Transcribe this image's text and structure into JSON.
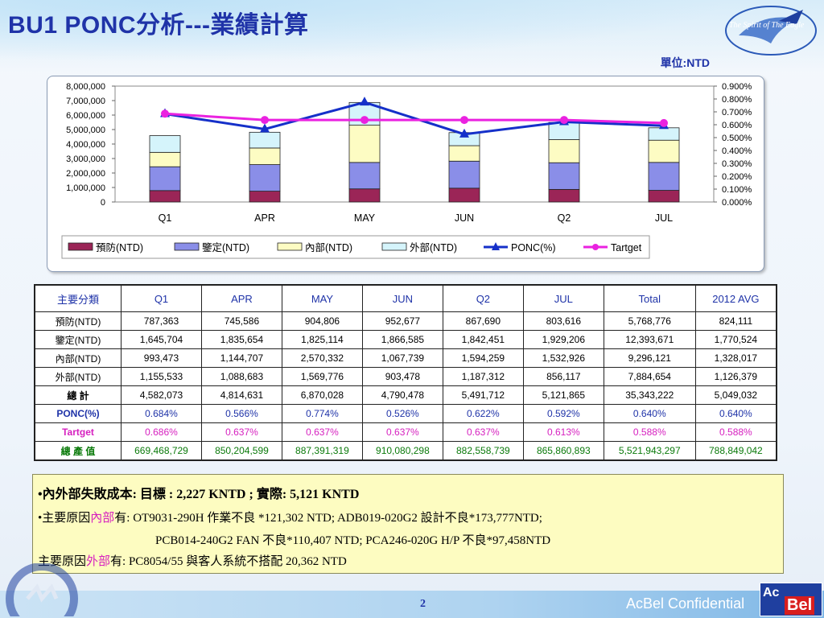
{
  "title": "BU1  PONC分析---業績計算",
  "logo_text": "The Spirit of The Eagle",
  "unit": "單位:NTD",
  "chart_data": {
    "type": "bar",
    "stacked": true,
    "categories": [
      "Q1",
      "APR",
      "MAY",
      "JUN",
      "Q2",
      "JUL"
    ],
    "y_ticks": [
      "8,000,000",
      "7,000,000",
      "6,000,000",
      "5,000,000",
      "4,000,000",
      "3,000,000",
      "2,000,000",
      "1,000,000",
      "0"
    ],
    "y2_ticks": [
      "0.900%",
      "0.800%",
      "0.700%",
      "0.600%",
      "0.500%",
      "0.400%",
      "0.300%",
      "0.200%",
      "0.100%",
      "0.000%"
    ],
    "ylim": [
      0,
      8000000
    ],
    "y2lim": [
      0,
      0.9
    ],
    "series": [
      {
        "name": "預防(NTD)",
        "color": "#9b2557",
        "values": [
          787363,
          745586,
          904806,
          952677,
          867690,
          803616
        ]
      },
      {
        "name": "鑒定(NTD)",
        "color": "#8a8ee8",
        "values": [
          1645704,
          1835654,
          1825114,
          1866585,
          1842451,
          1929206
        ]
      },
      {
        "name": "內部(NTD)",
        "color": "#fdfcc3",
        "values": [
          993473,
          1144707,
          2570332,
          1067739,
          1594259,
          1532926
        ]
      },
      {
        "name": "外部(NTD)",
        "color": "#d5f4fb",
        "values": [
          1155533,
          1088683,
          1569776,
          903478,
          1187312,
          856117
        ]
      }
    ],
    "lines": [
      {
        "name": "PONC(%)",
        "color": "#1530c9",
        "axis": "y2",
        "values": [
          0.684,
          0.566,
          0.774,
          0.526,
          0.622,
          0.592
        ]
      },
      {
        "name": "Tartget",
        "color": "#ea22e0",
        "axis": "y2",
        "values": [
          0.686,
          0.637,
          0.637,
          0.637,
          0.637,
          0.613
        ]
      }
    ],
    "legend_position": "bottom"
  },
  "table": {
    "header": [
      "主要分類",
      "Q1",
      "APR",
      "MAY",
      "JUN",
      "Q2",
      "JUL",
      "Total",
      "2012 AVG"
    ],
    "rows": [
      {
        "label": "預防(NTD)",
        "cells": [
          "787,363",
          "745,586",
          "904,806",
          "952,677",
          "867,690",
          "803,616",
          "5,768,776",
          "824,111"
        ]
      },
      {
        "label": "鑒定(NTD)",
        "cells": [
          "1,645,704",
          "1,835,654",
          "1,825,114",
          "1,866,585",
          "1,842,451",
          "1,929,206",
          "12,393,671",
          "1,770,524"
        ]
      },
      {
        "label": "內部(NTD)",
        "cells": [
          "993,473",
          "1,144,707",
          "2,570,332",
          "1,067,739",
          "1,594,259",
          "1,532,926",
          "9,296,121",
          "1,328,017"
        ]
      },
      {
        "label": "外部(NTD)",
        "cells": [
          "1,155,533",
          "1,088,683",
          "1,569,776",
          "903,478",
          "1,187,312",
          "856,117",
          "7,884,654",
          "1,126,379"
        ]
      },
      {
        "label": "總 計",
        "cells": [
          "4,582,073",
          "4,814,631",
          "6,870,028",
          "4,790,478",
          "5,491,712",
          "5,121,865",
          "35,343,222",
          "5,049,032"
        ]
      },
      {
        "label": "PONC(%)",
        "cells": [
          "0.684%",
          "0.566%",
          "0.774%",
          "0.526%",
          "0.622%",
          "0.592%",
          "0.640%",
          "0.640%"
        ]
      },
      {
        "label": "Tartget",
        "cells": [
          "0.686%",
          "0.637%",
          "0.637%",
          "0.637%",
          "0.637%",
          "0.613%",
          "0.588%",
          "0.588%"
        ]
      },
      {
        "label": "總 產 值",
        "cells": [
          "669,468,729",
          "850,204,599",
          "887,391,319",
          "910,080,298",
          "882,558,739",
          "865,860,893",
          "5,521,943,297",
          "788,849,042"
        ]
      }
    ]
  },
  "notes": {
    "line1": "•內外部失敗成本: 目標 :  2,227 KNTD  ; 實際: 5,121 KNTD",
    "line2_prefix": "•主要原因",
    "line2_highlight": "內部",
    "line2_suffix": "有: OT9031-290H 作業不良 *121,302 NTD; ADB019-020G2 設計不良*173,777NTD;",
    "line3": "PCB014-240G2  FAN 不良*110,407 NTD; PCA246-020G H/P 不良*97,458NTD",
    "line4_prefix": "主要原因",
    "line4_highlight": "外部",
    "line4_suffix": "有: PC8054/55 與客人系統不搭配 20,362 NTD"
  },
  "footer": {
    "page": "2",
    "confidential": "AcBel Confidential",
    "logo_ac": "Ac",
    "logo_bel": "Bel",
    "stamp_text": "NEW LOGO · ODM & EMS Partner"
  }
}
